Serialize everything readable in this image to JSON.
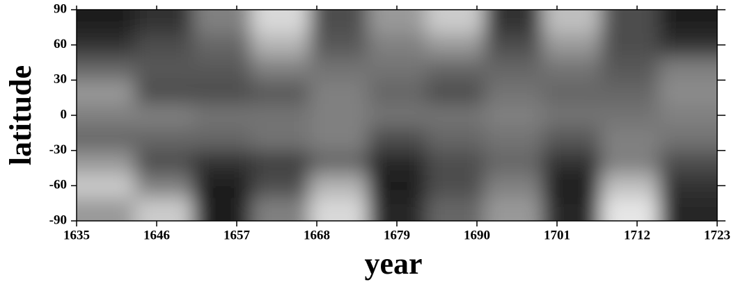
{
  "chart_data": {
    "type": "heatmap",
    "xlabel": "year",
    "ylabel": "latitude",
    "xlim": [
      1635,
      1723
    ],
    "xticks": [
      1635,
      1646,
      1657,
      1668,
      1679,
      1690,
      1701,
      1712,
      1723
    ],
    "ylim": [
      -90,
      90
    ],
    "yticks": [
      -90,
      -60,
      -30,
      0,
      30,
      60,
      90
    ],
    "x_bins": [
      1635,
      1643,
      1651,
      1659,
      1667,
      1675,
      1683,
      1691,
      1699,
      1707,
      1715,
      1723
    ],
    "y_bins": [
      -90,
      -70,
      -50,
      -30,
      -10,
      10,
      30,
      50,
      70,
      90
    ],
    "values": [
      [
        0.6,
        0.8,
        0.6,
        0.4,
        0.5,
        0.6,
        0.4,
        0.2,
        0.1
      ],
      [
        0.8,
        0.5,
        0.3,
        0.4,
        0.5,
        0.3,
        0.35,
        0.3,
        0.2
      ],
      [
        0.1,
        0.1,
        0.2,
        0.4,
        0.45,
        0.3,
        0.35,
        0.4,
        0.5
      ],
      [
        0.5,
        0.3,
        0.25,
        0.45,
        0.45,
        0.35,
        0.5,
        0.7,
        0.85
      ],
      [
        0.85,
        0.7,
        0.4,
        0.5,
        0.5,
        0.5,
        0.45,
        0.35,
        0.3
      ],
      [
        0.15,
        0.1,
        0.15,
        0.3,
        0.45,
        0.4,
        0.45,
        0.5,
        0.6
      ],
      [
        0.4,
        0.3,
        0.3,
        0.4,
        0.45,
        0.3,
        0.4,
        0.6,
        0.8
      ],
      [
        0.6,
        0.5,
        0.4,
        0.45,
        0.5,
        0.45,
        0.4,
        0.3,
        0.2
      ],
      [
        0.15,
        0.1,
        0.2,
        0.35,
        0.45,
        0.4,
        0.45,
        0.6,
        0.75
      ],
      [
        0.9,
        0.75,
        0.5,
        0.5,
        0.45,
        0.4,
        0.35,
        0.3,
        0.3
      ],
      [
        0.15,
        0.2,
        0.3,
        0.45,
        0.5,
        0.55,
        0.5,
        0.2,
        0.1
      ]
    ]
  }
}
